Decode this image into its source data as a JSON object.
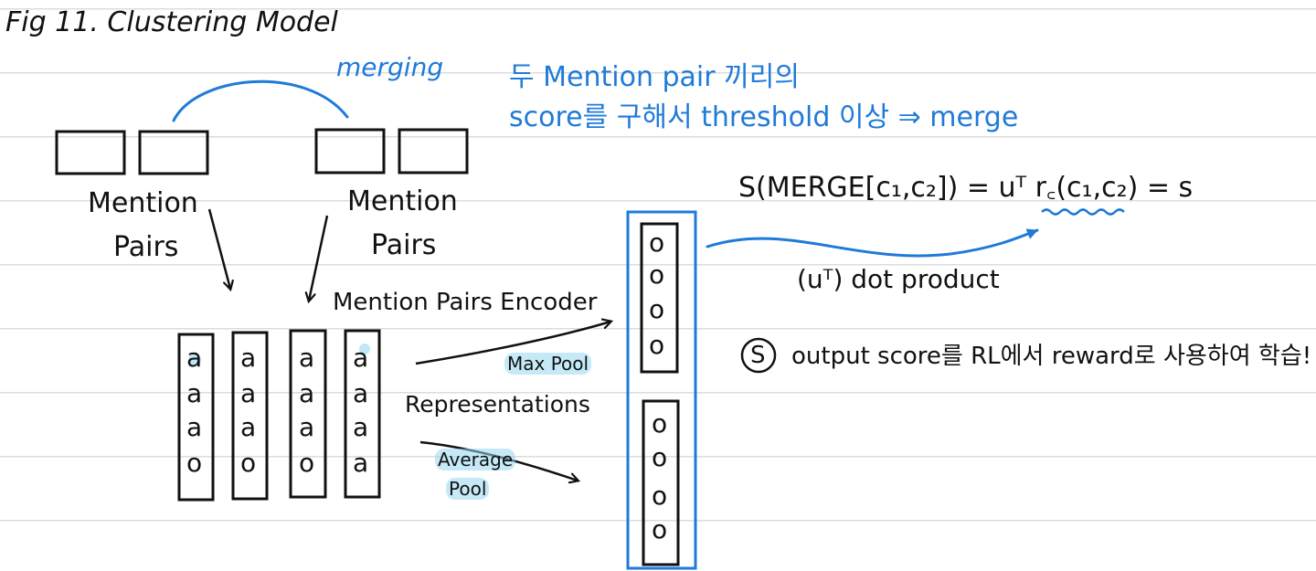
{
  "title": "Fig 11. Clustering Model",
  "merging_label": "merging",
  "note_line1": "두 Mention pair 끼리의",
  "note_line2": "score를 구해서 threshold 이상 ⇒ merge",
  "mention_pairs_label": [
    "Mention",
    "Pairs"
  ],
  "encoder_label": "Mention Pairs Encoder",
  "representations_label": "Representations",
  "max_pool_label": "Max Pool",
  "average_pool_label": [
    "Average",
    "Pool"
  ],
  "formula": "S(MERGE[c₁,c₂]) = uᵀ r꜀(c₁,c₂) = s",
  "dot_product_label": "(uᵀ) dot product",
  "output_note": "output score를 RL에서 reward로 사용하여 학습!",
  "circled_s": "S",
  "encoder_cells": [
    [
      "a",
      "a",
      "a",
      "o"
    ],
    [
      "a",
      "a",
      "a",
      "o"
    ],
    [
      "a",
      "a",
      "a",
      "o"
    ],
    [
      "a",
      "a",
      "a",
      "a"
    ]
  ],
  "pooled_cells": [
    [
      "o",
      "o",
      "o",
      "o"
    ],
    [
      "o",
      "o",
      "o",
      "o"
    ]
  ],
  "colors": {
    "ink": "#111111",
    "accent_blue": "#1f7ad8",
    "highlight": "#96d7f0",
    "rule_line": "#dcdcdc"
  }
}
